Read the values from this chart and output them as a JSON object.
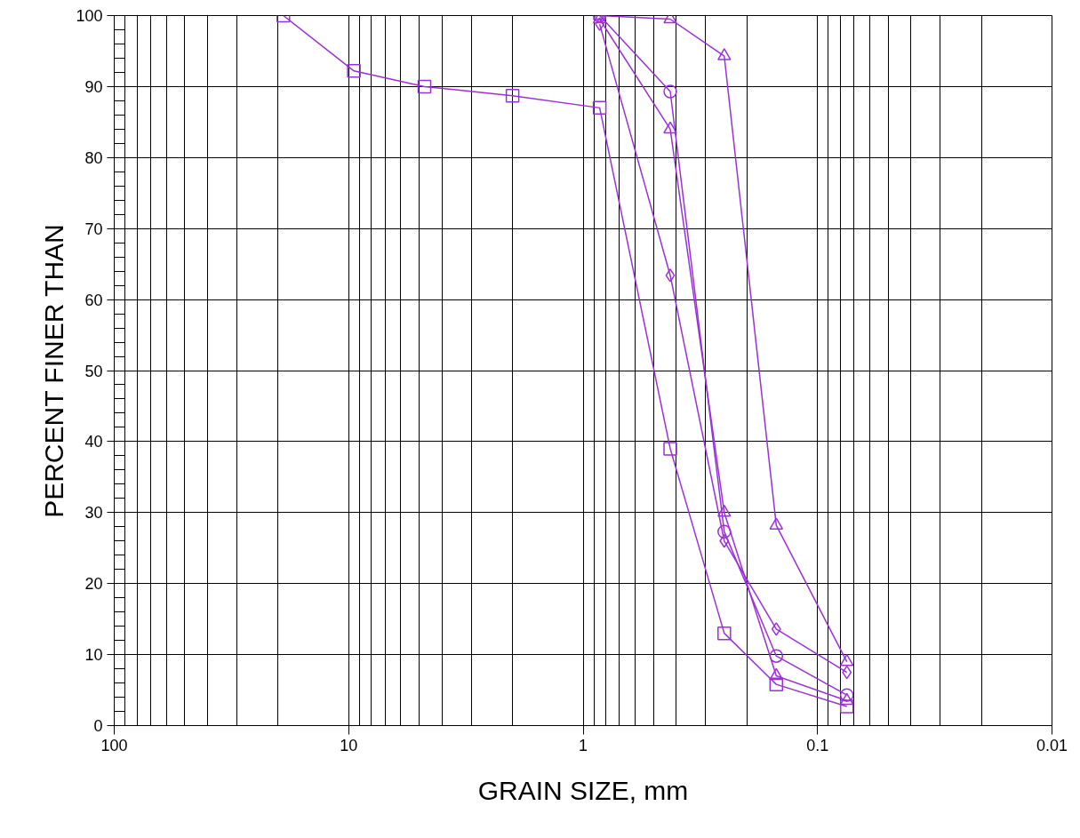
{
  "chart_data": {
    "type": "line",
    "xlabel": "GRAIN SIZE, mm",
    "ylabel": "PERCENT FINER THAN",
    "xlim": [
      100,
      0.01
    ],
    "xticks": [
      100,
      10,
      1,
      0.1,
      0.01
    ],
    "ylim": [
      0,
      100
    ],
    "yticks": [
      0,
      10,
      20,
      30,
      40,
      50,
      60,
      70,
      80,
      90,
      100
    ],
    "log": "x",
    "grid": true,
    "series": [
      {
        "color": "#9b30d9",
        "marker": "square",
        "x": [
          19,
          9.5,
          4.75,
          2,
          0.85,
          0.425,
          0.25,
          0.15,
          0.075
        ],
        "values": [
          100,
          92.2,
          90,
          88.7,
          87,
          39,
          13,
          5.8,
          2.7
        ]
      },
      {
        "color": "#9b30d9",
        "marker": "circle",
        "x": [
          0.85,
          0.425,
          0.25,
          0.15,
          0.075
        ],
        "values": [
          100,
          89.3,
          27.3,
          9.8,
          4.3
        ]
      },
      {
        "color": "#9b30d9",
        "marker": "triangle",
        "x": [
          0.85,
          0.425,
          0.25,
          0.15,
          0.075
        ],
        "values": [
          99.5,
          84,
          30,
          7,
          3.5
        ]
      },
      {
        "color": "#9b30d9",
        "marker": "diamond",
        "x": [
          0.85,
          0.425,
          0.25,
          0.15,
          0.075
        ],
        "values": [
          98.8,
          63.4,
          26,
          13.6,
          7.5
        ]
      },
      {
        "color": "#9b30d9",
        "marker": "triangle",
        "x": [
          0.85,
          0.425,
          0.25,
          0.15,
          0.075
        ],
        "values": [
          100,
          99.5,
          94.3,
          28.2,
          9
        ]
      }
    ]
  }
}
